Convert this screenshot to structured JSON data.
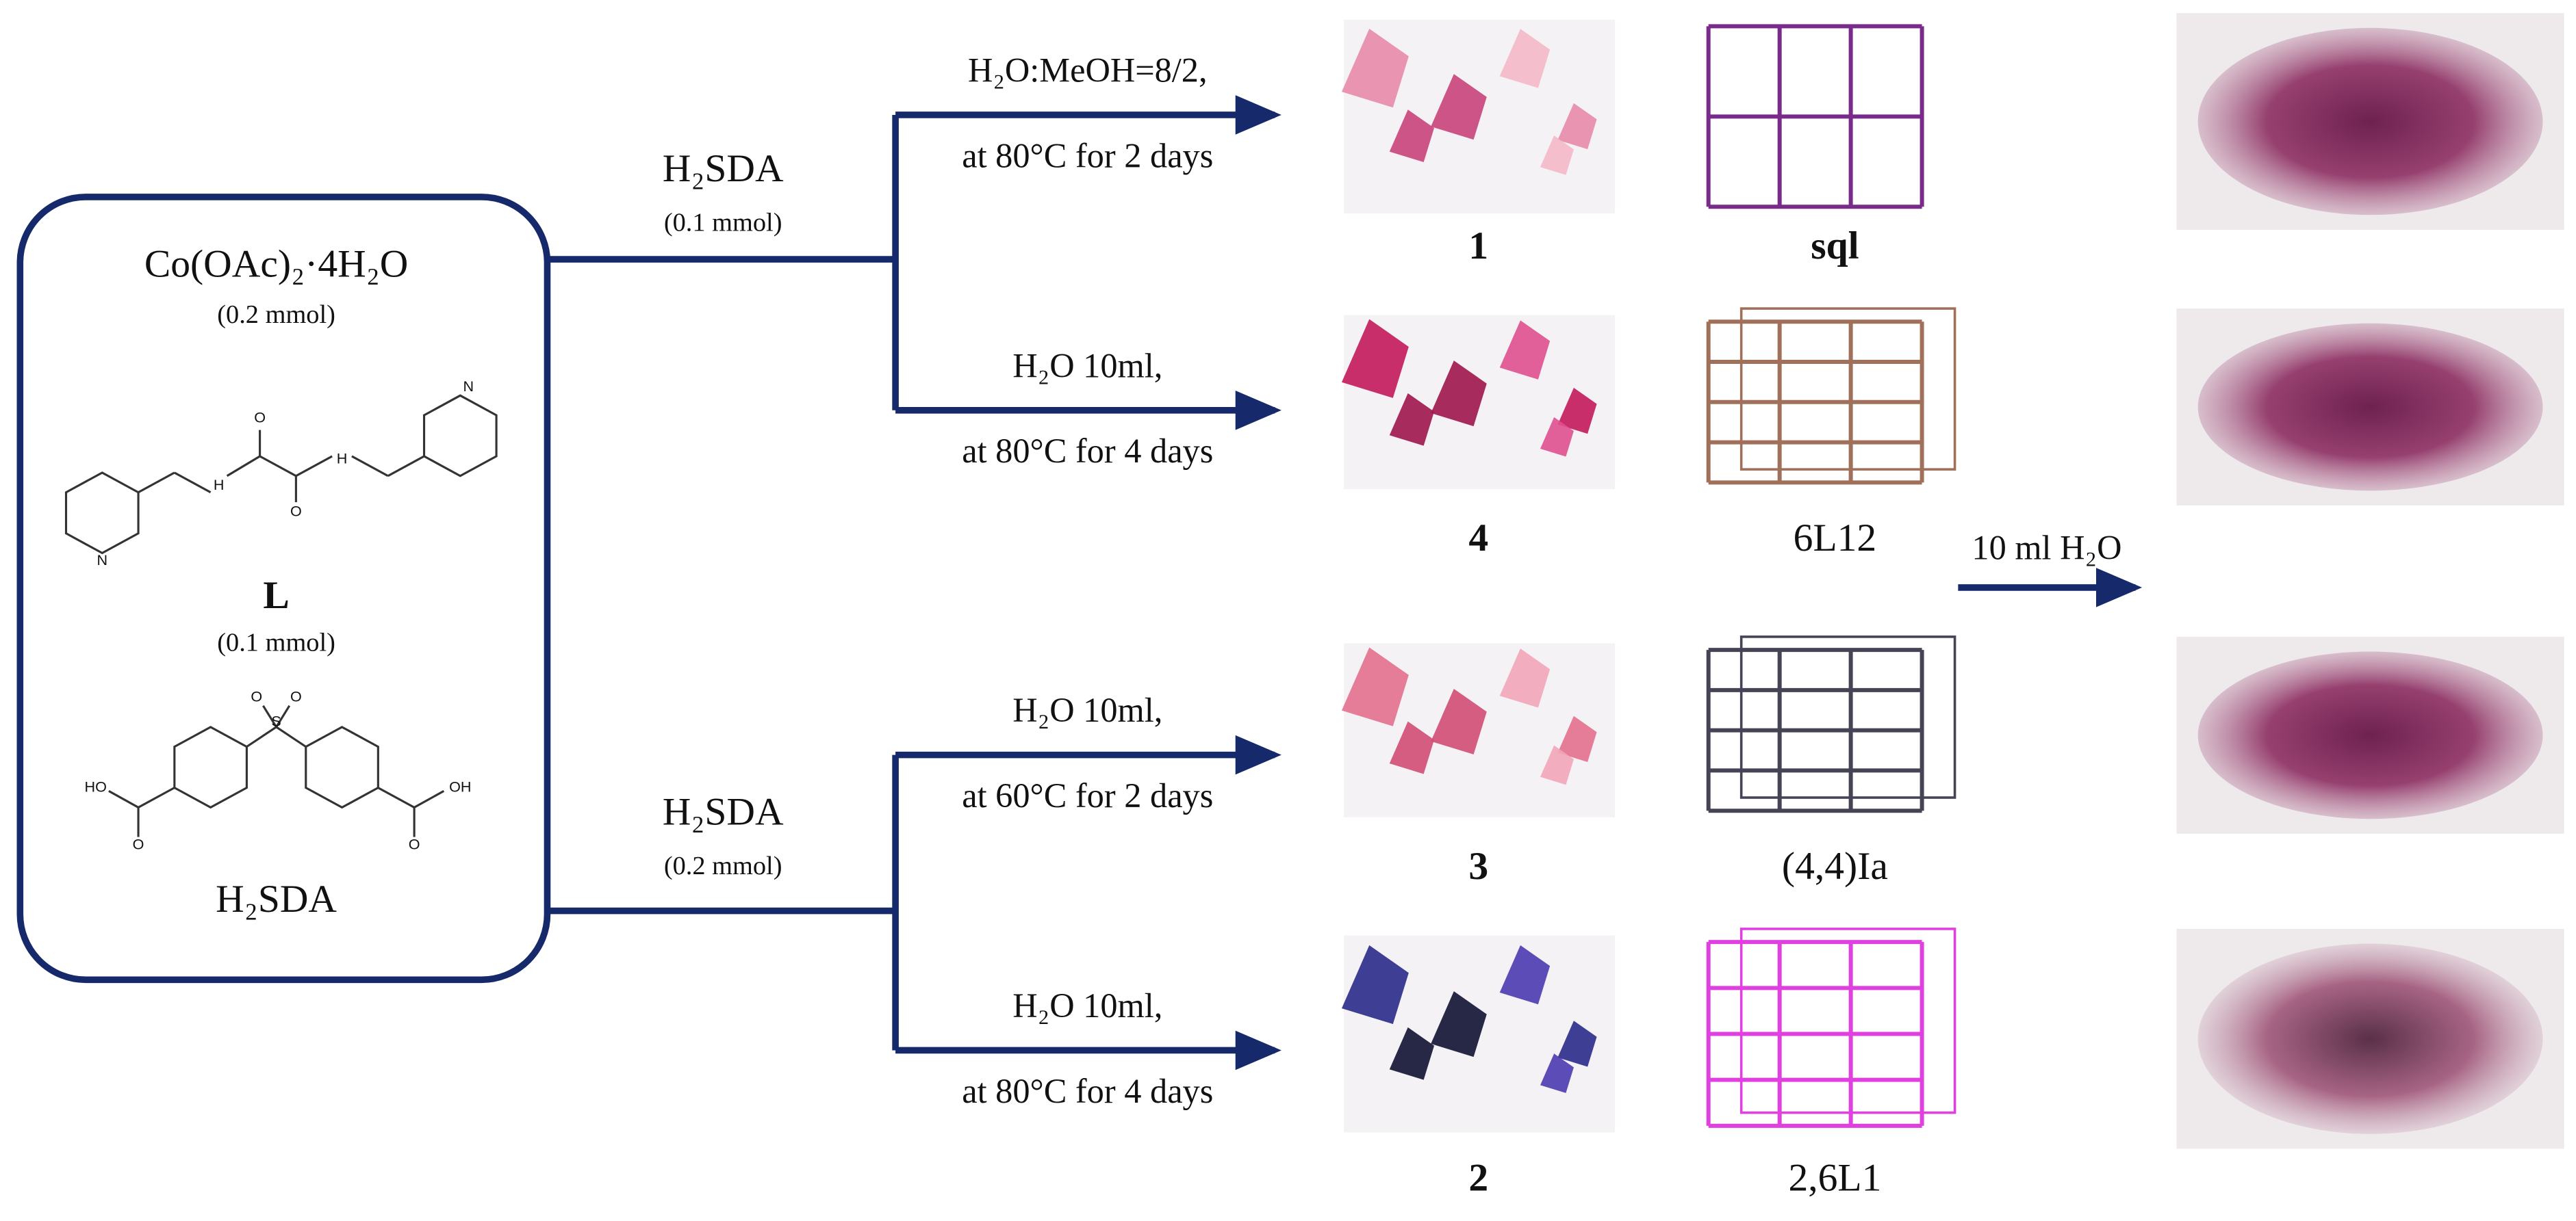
{
  "reactants": {
    "metal": {
      "name": "Co(OAc)₂·4H₂O",
      "amount": "(0.2 mmol)"
    },
    "ligand": {
      "name": "L",
      "amount": "(0.1 mmol)"
    },
    "acid": {
      "name": "H₂SDA"
    }
  },
  "branches": [
    {
      "reagent": "H₂SDA",
      "amount": "(0.1 mmol)",
      "routes": [
        {
          "solvent": "H₂O:MeOH=8/2,",
          "conditions": "at 80°C for 2 days",
          "product": "1",
          "topology": "sql"
        },
        {
          "solvent": "H₂O 10ml,",
          "conditions": "at 80°C for 4 days",
          "product": "4",
          "topology": "6L12"
        }
      ]
    },
    {
      "reagent": "H₂SDA",
      "amount": "(0.2 mmol)",
      "routes": [
        {
          "solvent": "H₂O 10ml,",
          "conditions": "at 60°C for 2 days",
          "product": "3",
          "topology": "(4,4)Ia"
        },
        {
          "solvent": "H₂O 10ml,",
          "conditions": "at 80°C for 4 days",
          "product": "2",
          "topology": "2,6L1"
        }
      ]
    }
  ],
  "treatment": "10 ml H₂O"
}
